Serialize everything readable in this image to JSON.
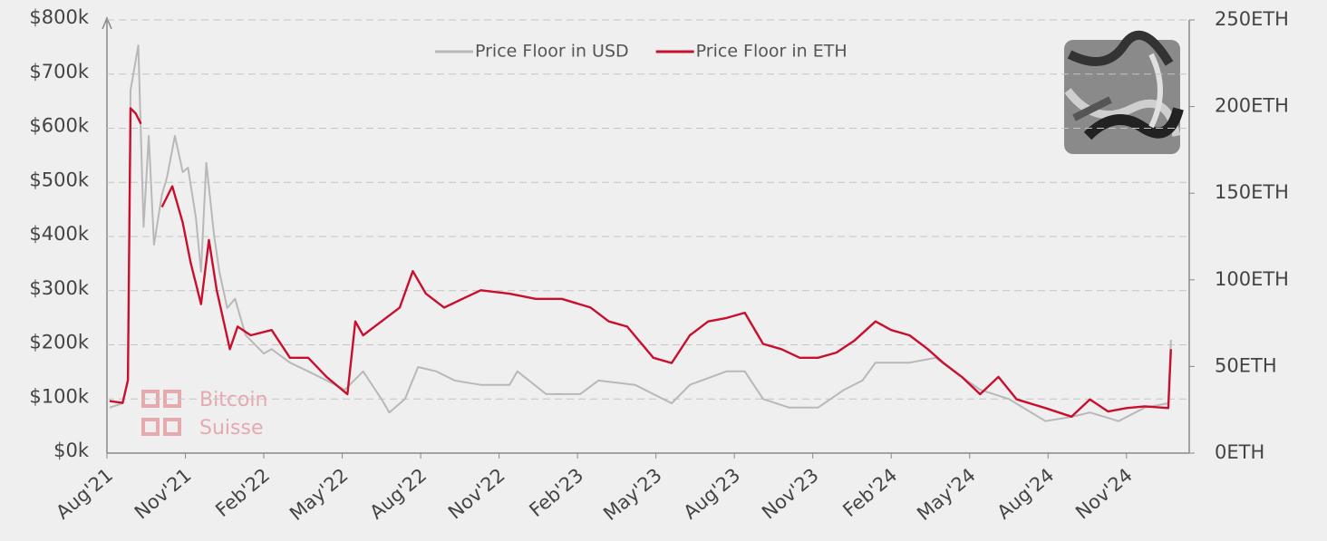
{
  "chart_data": {
    "type": "line",
    "legend": "top",
    "grid": true,
    "xlim": [
      0,
      41.4
    ],
    "xticks": [
      {
        "value": 0,
        "label": "Aug'21"
      },
      {
        "value": 3,
        "label": "Nov'21"
      },
      {
        "value": 6,
        "label": "Feb'22"
      },
      {
        "value": 9,
        "label": "May'22"
      },
      {
        "value": 12,
        "label": "Aug'22"
      },
      {
        "value": 15,
        "label": "Nov'22"
      },
      {
        "value": 18,
        "label": "Feb'23"
      },
      {
        "value": 21,
        "label": "May'23"
      },
      {
        "value": 24,
        "label": "Aug'23"
      },
      {
        "value": 27,
        "label": "Nov'23"
      },
      {
        "value": 30,
        "label": "Feb'24"
      },
      {
        "value": 33,
        "label": "May'24"
      },
      {
        "value": 36,
        "label": "Aug'24"
      },
      {
        "value": 39,
        "label": "Nov'24"
      }
    ],
    "ylim": [
      0,
      800
    ],
    "yticks": [
      {
        "value": 0,
        "label": "$0k"
      },
      {
        "value": 100,
        "label": "$100k"
      },
      {
        "value": 200,
        "label": "$200k"
      },
      {
        "value": 300,
        "label": "$300k"
      },
      {
        "value": 400,
        "label": "$400k"
      },
      {
        "value": 500,
        "label": "$500k"
      },
      {
        "value": 600,
        "label": "$600k"
      },
      {
        "value": 700,
        "label": "$700k"
      },
      {
        "value": 800,
        "label": "$800k"
      }
    ],
    "y2lim": [
      0,
      250
    ],
    "y2ticks": [
      {
        "value": 0,
        "label": "0ETH"
      },
      {
        "value": 50,
        "label": "50ETH"
      },
      {
        "value": 100,
        "label": "100ETH"
      },
      {
        "value": 150,
        "label": "150ETH"
      },
      {
        "value": 200,
        "label": "200ETH"
      },
      {
        "value": 250,
        "label": "250ETH"
      }
    ],
    "series": [
      {
        "name": "Price Floor in USD",
        "color": "#b8b8b8",
        "axis": "y",
        "x": [
          0.1,
          0.6,
          0.8,
          0.9,
          1.2,
          1.4,
          1.6,
          1.8,
          2.1,
          2.3,
          2.6,
          2.9,
          3.1,
          3.4,
          3.6,
          3.8,
          4.1,
          4.3,
          4.6,
          4.9,
          5.3,
          6.0,
          6.3,
          7.0,
          7.7,
          8.4,
          9.1,
          9.8,
          10.5,
          10.8,
          11.4,
          11.9,
          12.6,
          13.3,
          14.3,
          15.4,
          15.7,
          16.8,
          18.1,
          18.8,
          20.2,
          21.6,
          22.3,
          23.7,
          24.4,
          25.1,
          26.1,
          27.2,
          28.2,
          28.9,
          29.4,
          30.7,
          31.7,
          32.4,
          33.4,
          34.5,
          35.9,
          36.9,
          37.6,
          38.7,
          39.7,
          40.6,
          40.7
        ],
        "values": [
          84,
          92,
          134,
          670,
          753,
          418,
          586,
          385,
          477,
          510,
          586,
          519,
          527,
          435,
          335,
          536,
          402,
          335,
          268,
          285,
          218,
          184,
          192,
          167,
          151,
          134,
          117,
          151,
          100,
          75,
          100,
          159,
          151,
          134,
          126,
          126,
          151,
          109,
          109,
          134,
          126,
          92,
          126,
          151,
          151,
          100,
          84,
          84,
          117,
          134,
          167,
          167,
          176,
          151,
          117,
          100,
          59,
          67,
          75,
          59,
          84,
          92,
          209
        ]
      },
      {
        "name": "Price Floor in ETH",
        "color": "#c8102e",
        "axis": "y2",
        "x": [
          0.1,
          0.6,
          0.8,
          0.9,
          1.1,
          1.3,
          1.8,
          2.1,
          2.5,
          2.9,
          3.2,
          3.6,
          3.9,
          4.2,
          4.7,
          5.0,
          5.5,
          6.3,
          7.0,
          7.7,
          8.4,
          9.2,
          9.5,
          9.8,
          10.5,
          11.2,
          11.7,
          12.2,
          12.9,
          13.6,
          14.3,
          15.4,
          16.4,
          17.4,
          18.5,
          19.2,
          19.9,
          20.9,
          21.6,
          22.3,
          23.0,
          23.7,
          24.4,
          25.1,
          25.8,
          26.5,
          27.2,
          27.9,
          28.6,
          29.4,
          30.0,
          30.7,
          31.4,
          32.0,
          32.7,
          33.4,
          34.1,
          34.8,
          35.9,
          36.9,
          37.6,
          38.3,
          39.0,
          39.7,
          40.6,
          40.7
        ],
        "values": [
          30,
          29,
          42,
          199,
          196,
          190,
          null,
          142,
          154,
          133,
          110,
          86,
          123,
          94,
          60,
          73,
          68,
          71,
          55,
          55,
          44,
          34,
          76,
          68,
          76,
          84,
          105,
          92,
          84,
          89,
          94,
          92,
          89,
          89,
          84,
          76,
          73,
          55,
          52,
          68,
          76,
          78,
          81,
          63,
          60,
          55,
          55,
          58,
          65,
          76,
          71,
          68,
          60,
          52,
          44,
          34,
          44,
          31,
          26,
          21,
          31,
          24,
          26,
          27,
          26,
          60
        ]
      }
    ]
  },
  "watermark": [
    "Bitcoin",
    "Suisse"
  ]
}
